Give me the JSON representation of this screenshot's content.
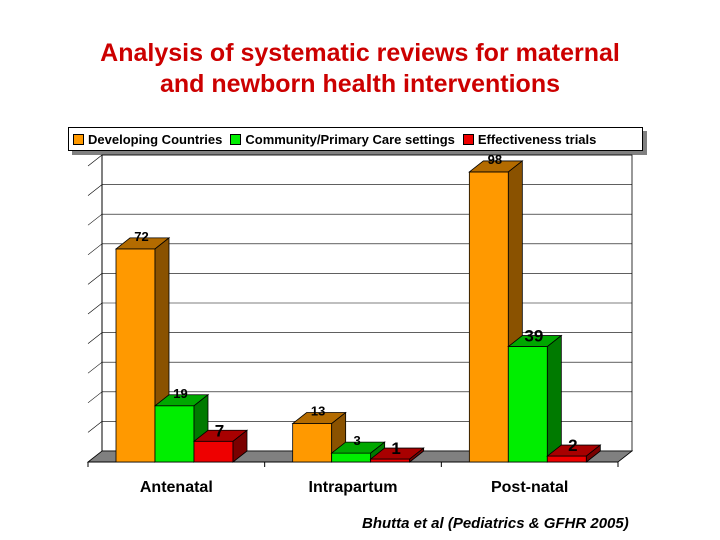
{
  "title_lines": [
    "Analysis of systematic reviews for maternal",
    "and newborn health interventions"
  ],
  "source": "Bhutta et al (Pediatrics & GFHR 2005)",
  "colors": {
    "title": "#cc0000",
    "series": [
      "#ff9900",
      "#00ee00",
      "#ee0000"
    ],
    "series_side": [
      "#8a5200",
      "#007a00",
      "#7a0000"
    ],
    "series_top": [
      "#b36b00",
      "#00a800",
      "#a80000"
    ]
  },
  "chart_data": {
    "type": "bar",
    "title": "Analysis of systematic reviews for maternal and newborn health interventions",
    "categories": [
      "Antenatal",
      "Intrapartum",
      "Post-natal"
    ],
    "series": [
      {
        "name": "Developing Countries",
        "values": [
          72,
          13,
          98
        ]
      },
      {
        "name": "Community/Primary Care settings",
        "values": [
          19,
          3,
          39
        ]
      },
      {
        "name": "Effectiveness trials",
        "values": [
          7,
          1,
          2
        ]
      }
    ],
    "ylim": [
      0,
      100
    ],
    "grid": true,
    "legend": "top",
    "xlabel": "",
    "ylabel": ""
  }
}
